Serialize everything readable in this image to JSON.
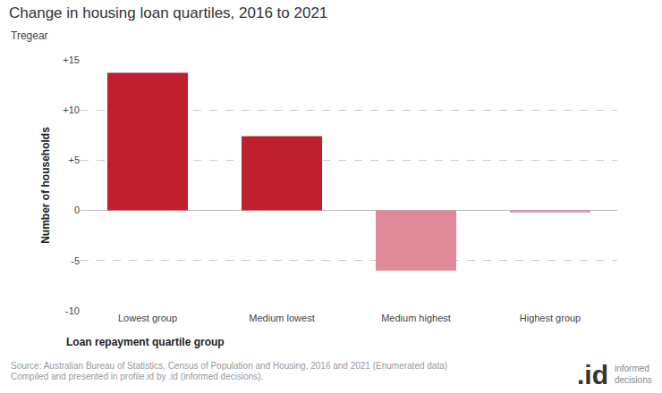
{
  "chart_data": {
    "type": "bar",
    "title": "Change in housing loan quartiles, 2016 to 2021",
    "subtitle": "Tregear",
    "x_label": "Loan repayment quartile group",
    "y_label": "Number of households",
    "categories": [
      "Lowest group",
      "Medium lowest",
      "Medium highest",
      "Highest group"
    ],
    "values": [
      13.7,
      7.4,
      -6.0,
      -0.2
    ],
    "colors": [
      "#c01f2f",
      "#c01f2f",
      "#e08a99",
      "#e08a99"
    ],
    "ylim": [
      -10,
      15
    ],
    "yticks": [
      -10,
      -5,
      0,
      {
        "value": 5,
        "label": "+5"
      },
      {
        "value": 10,
        "label": "+10"
      },
      {
        "value": 15,
        "label": "+15"
      }
    ],
    "grid": true,
    "source": [
      "Source: Australian Bureau of Statistics, Census of Population and Housing, 2016 and 2021 (Enumerated data)",
      "Compiled and presented in profile.id by .id (informed decisions)."
    ],
    "logo": [
      ".id",
      "informed decisions"
    ]
  }
}
